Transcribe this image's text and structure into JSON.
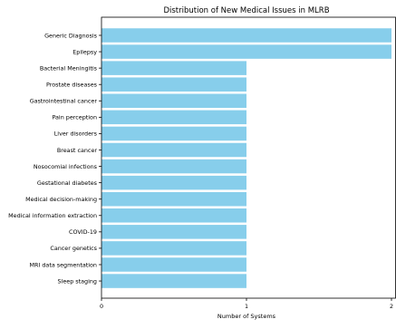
{
  "chart_data": {
    "type": "bar",
    "orientation": "horizontal",
    "title": "Distribution of New Medical Issues in MLRB",
    "xlabel": "Number of Systems",
    "ylabel": "",
    "categories": [
      "Generic Diagnosis",
      "Epilepsy",
      "Bacterial Meningitis",
      "Prostate diseases",
      "Gastrointestinal cancer",
      "Pain perception",
      "Liver disorders",
      "Breast cancer",
      "Nosocomial infections",
      "Gestational diabetes",
      "Medical decision-making",
      "Medical information extraction",
      "COVID-19",
      "Cancer genetics",
      "MRI data segmentation",
      "Sleep staging"
    ],
    "values": [
      2,
      2,
      1,
      1,
      1,
      1,
      1,
      1,
      1,
      1,
      1,
      1,
      1,
      1,
      1,
      1
    ],
    "xlim": [
      0,
      2
    ],
    "xticks": [
      "0",
      "1",
      "2"
    ],
    "grid": false,
    "colors": {
      "bar": "#87CEEB",
      "axis": "#000000"
    }
  }
}
